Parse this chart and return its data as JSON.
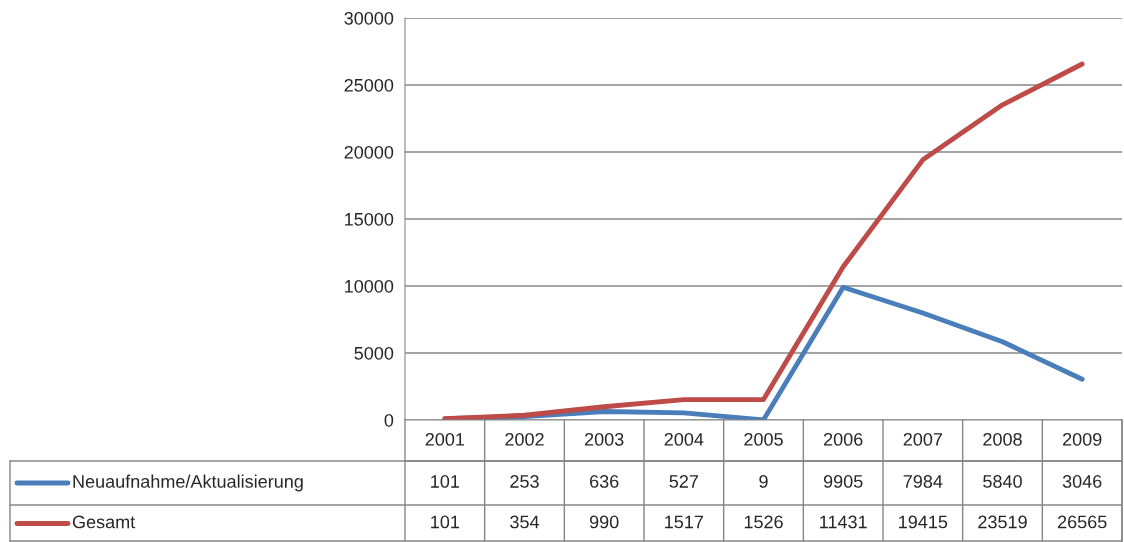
{
  "chart_data": {
    "type": "line",
    "categories": [
      "2001",
      "2002",
      "2003",
      "2004",
      "2005",
      "2006",
      "2007",
      "2008",
      "2009"
    ],
    "series": [
      {
        "name": "Neuaufnahme/Aktualisierung",
        "color": "#4a7ebb",
        "values": [
          101,
          253,
          636,
          527,
          9,
          9905,
          7984,
          5840,
          3046
        ]
      },
      {
        "name": "Gesamt",
        "color": "#be4b48",
        "values": [
          101,
          354,
          990,
          1517,
          1526,
          11431,
          19415,
          23519,
          26565
        ]
      }
    ],
    "ylim": [
      0,
      30000
    ],
    "yticks": [
      0,
      5000,
      10000,
      15000,
      20000,
      25000,
      30000
    ],
    "grid": "y",
    "legend": "bottom",
    "data_labels": true,
    "marker": "none",
    "line_style": "solid"
  }
}
